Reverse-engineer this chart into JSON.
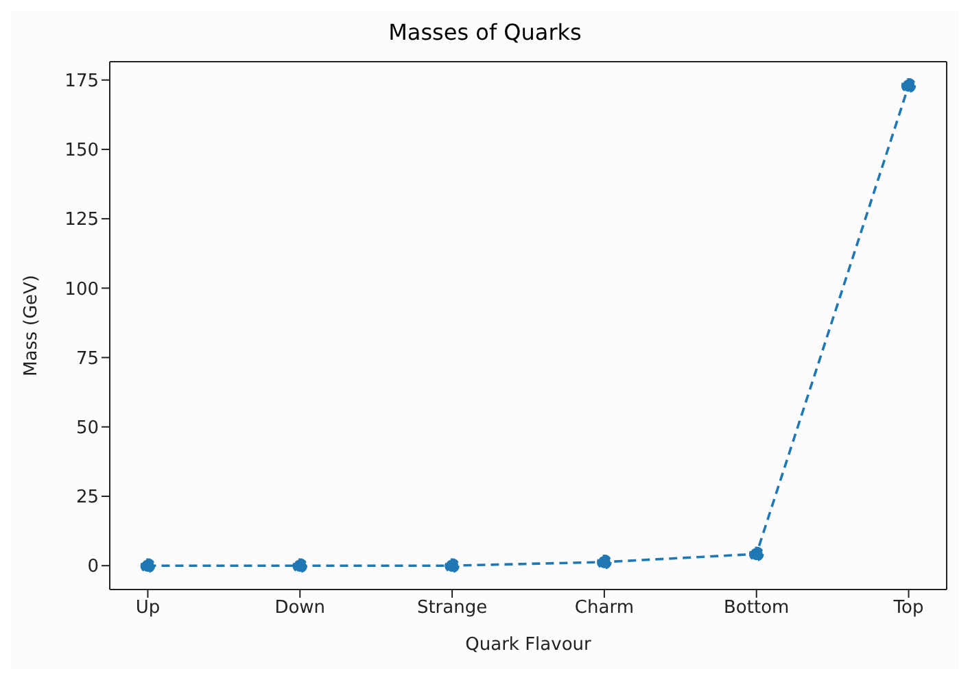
{
  "chart_data": {
    "type": "line",
    "title": "Masses of Quarks",
    "xlabel": "Quark Flavour",
    "ylabel": "Mass (GeV)",
    "categories": [
      "Up",
      "Down",
      "Strange",
      "Charm",
      "Bottom",
      "Top"
    ],
    "series": [
      {
        "color": "#1f77b4",
        "values": [
          0,
          0,
          0,
          1.3,
          4.2,
          173
        ]
      }
    ],
    "ylim": [
      -8.6,
      181.6
    ],
    "yticks": [
      0,
      25,
      50,
      75,
      100,
      125,
      150,
      175
    ],
    "marker": "circle",
    "line_style": "dashed"
  }
}
